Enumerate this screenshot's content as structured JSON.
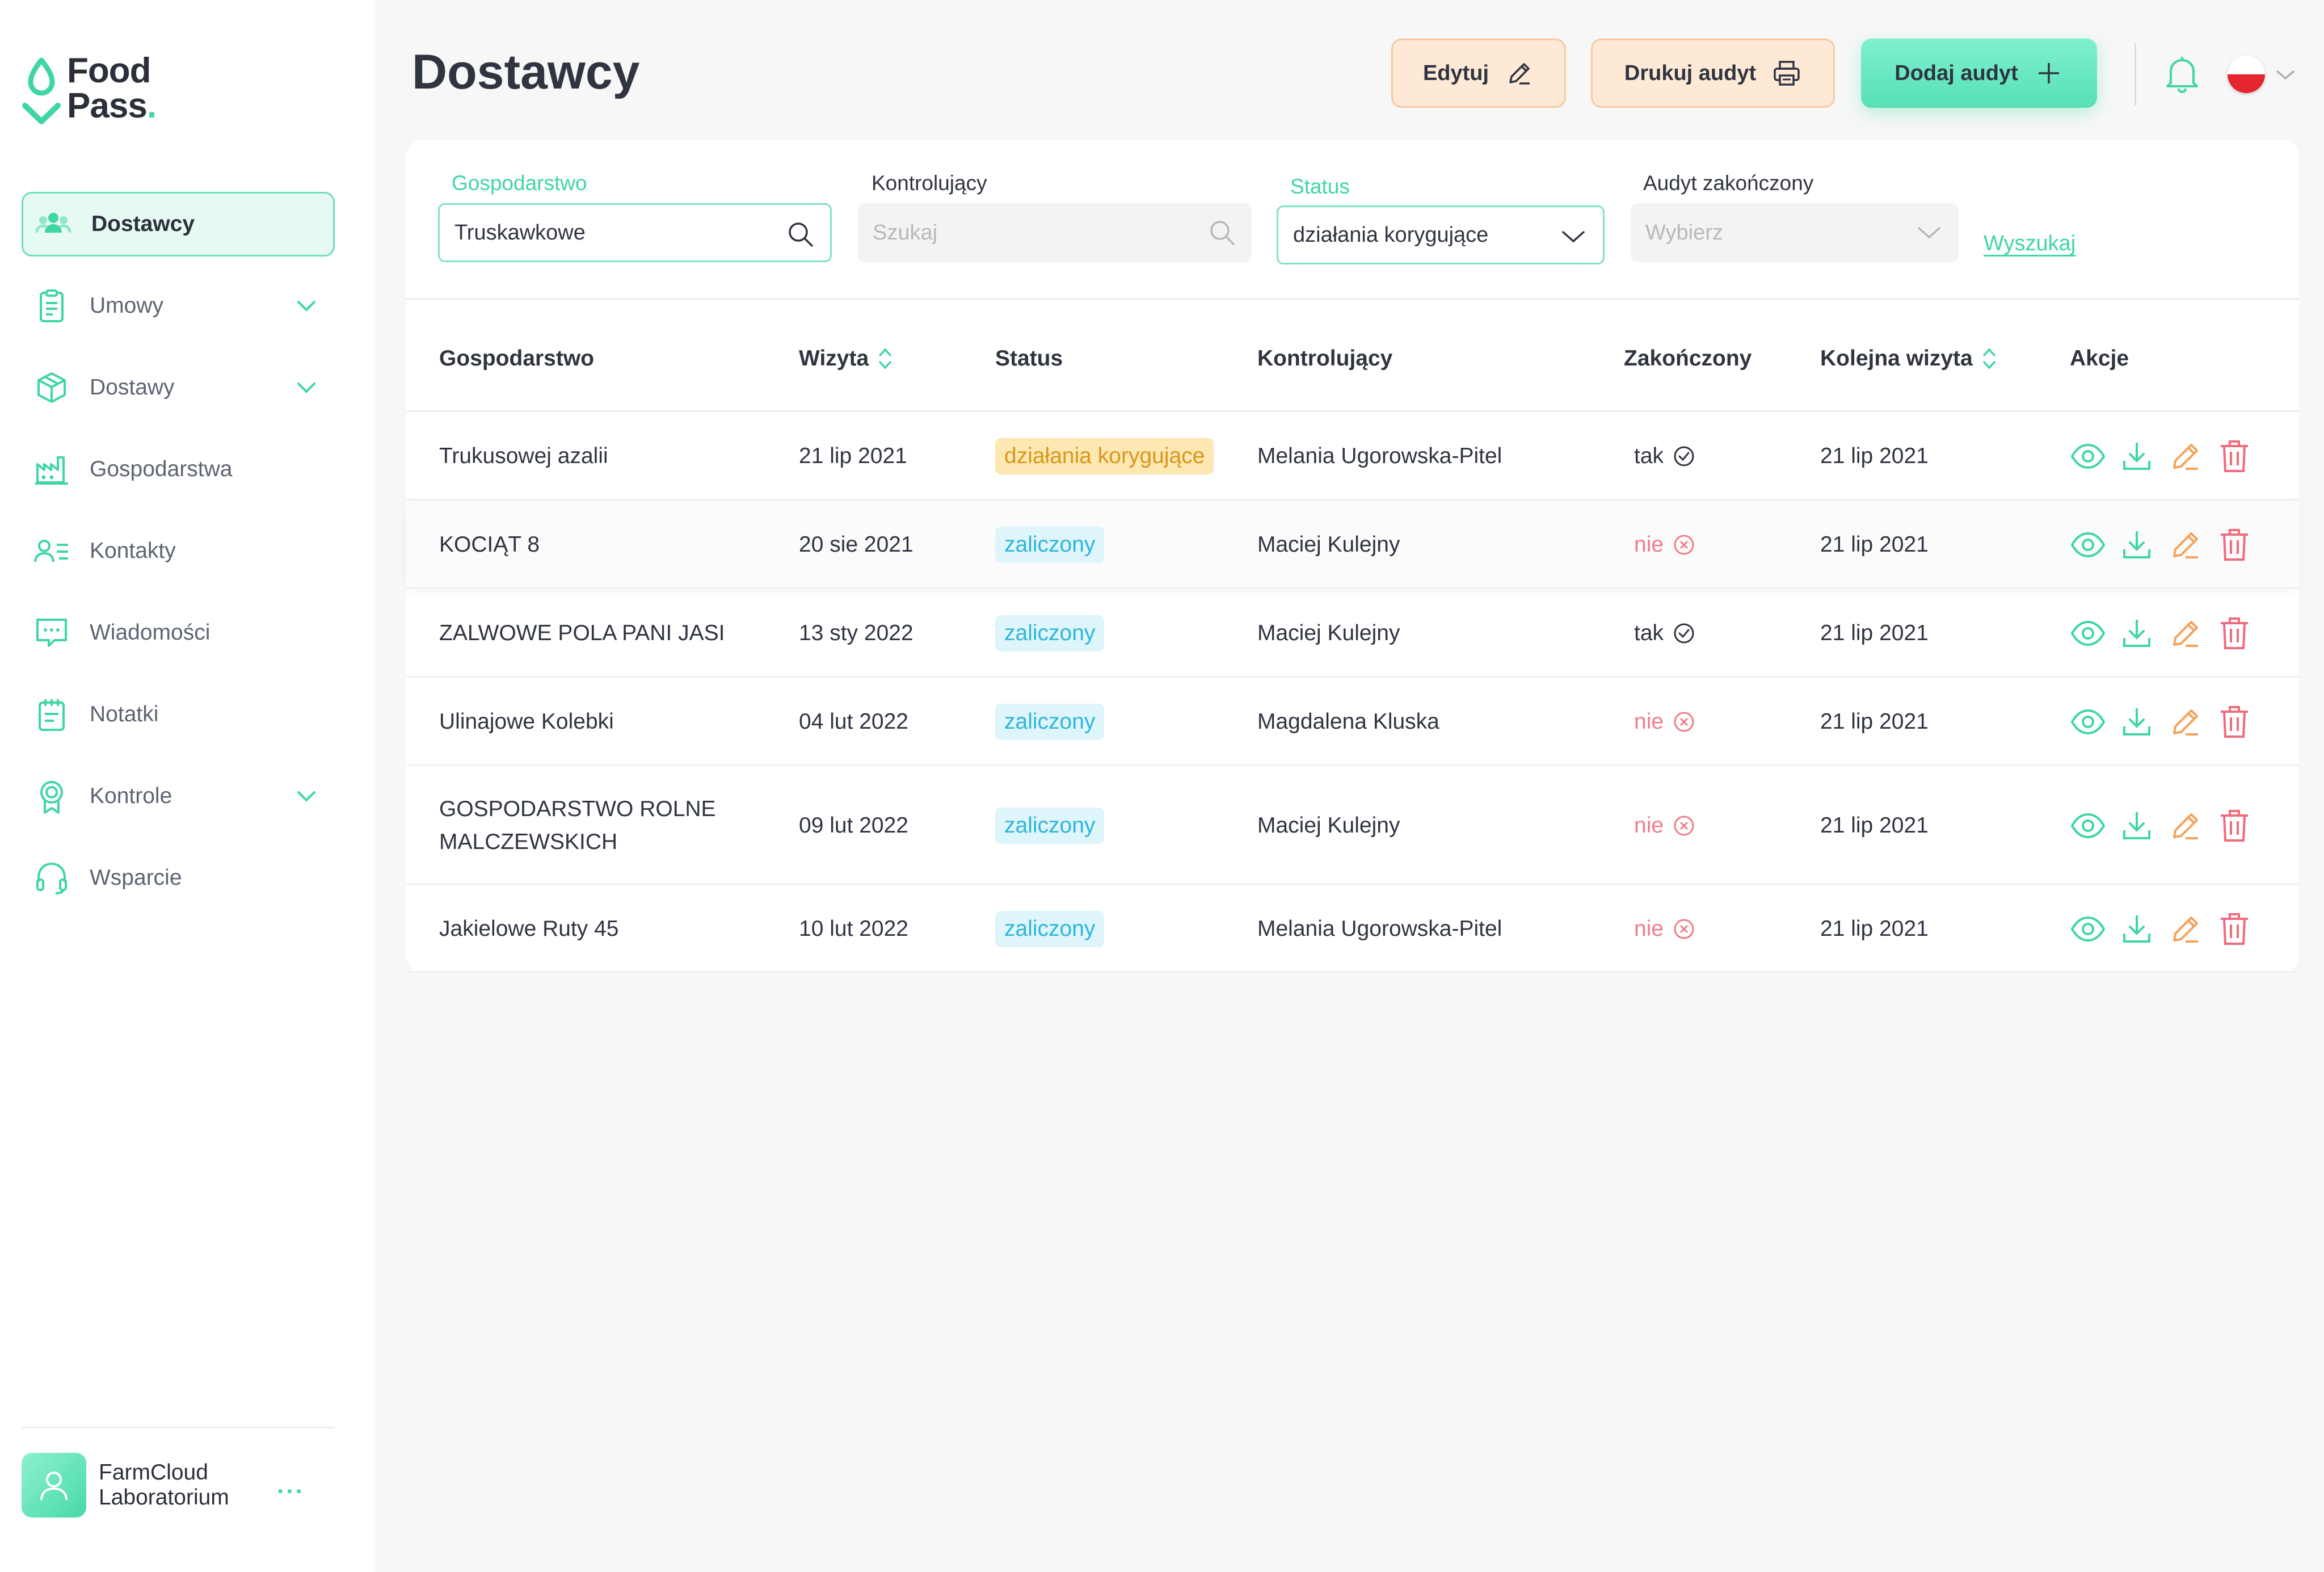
{
  "brand": {
    "line1": "Food",
    "line2": "Pass",
    "dot": "."
  },
  "colors": {
    "accent": "#3fd6a6",
    "warn": "#f5a25a",
    "danger": "#f06b7c",
    "info": "#2fb6d8"
  },
  "sidebar": {
    "items": [
      {
        "label": "Dostawcy",
        "icon": "users-icon",
        "active": true
      },
      {
        "label": "Umowy",
        "icon": "clipboard-icon",
        "expandable": true
      },
      {
        "label": "Dostawy",
        "icon": "package-icon",
        "expandable": true
      },
      {
        "label": "Gospodarstwa",
        "icon": "factory-icon"
      },
      {
        "label": "Kontakty",
        "icon": "contacts-icon"
      },
      {
        "label": "Wiadomości",
        "icon": "message-icon"
      },
      {
        "label": "Notatki",
        "icon": "notes-icon"
      },
      {
        "label": "Kontrole",
        "icon": "badge-icon",
        "expandable": true
      },
      {
        "label": "Wsparcie",
        "icon": "headset-icon"
      }
    ],
    "user": {
      "name": "FarmCloud Laboratorium",
      "menu": "..."
    }
  },
  "header": {
    "title": "Dostawcy",
    "edit_label": "Edytuj",
    "print_label": "Drukuj audyt",
    "add_label": "Dodaj audyt"
  },
  "filters": {
    "farm": {
      "label": "Gospodarstwo",
      "value": "Truskawkowe"
    },
    "inspector": {
      "label": "Kontrolujący",
      "placeholder": "Szukaj"
    },
    "status": {
      "label": "Status",
      "value": "działania korygujące"
    },
    "finished": {
      "label": "Audyt zakończony",
      "placeholder": "Wybierz"
    },
    "search_label": "Wyszukaj"
  },
  "table": {
    "columns": [
      "Gospodarstwo",
      "Wizyta",
      "Status",
      "Kontrolujący",
      "Zakończony",
      "Kolejna wizyta",
      "Akcje"
    ],
    "rows": [
      {
        "farm": "Trukusowej azalii",
        "visit": "21 lip 2021",
        "status": "działania korygujące",
        "status_type": "warn",
        "inspector": "Melania Ugorowska-Pitel",
        "done": "tak",
        "next": "21 lip 2021"
      },
      {
        "farm": "KOCIĄT 8",
        "visit": "20 sie 2021",
        "status": "zaliczony",
        "status_type": "ok",
        "inspector": "Maciej Kulejny",
        "done": "nie",
        "next": "21 lip 2021"
      },
      {
        "farm": "ZALWOWE POLA PANI JASI",
        "visit": "13 sty 2022",
        "status": "zaliczony",
        "status_type": "ok",
        "inspector": "Maciej Kulejny",
        "done": "tak",
        "next": "21 lip 2021"
      },
      {
        "farm": "Ulinajowe Kolebki",
        "visit": "04 lut 2022",
        "status": "zaliczony",
        "status_type": "ok",
        "inspector": "Magdalena Kluska",
        "done": "nie",
        "next": "21 lip 2021"
      },
      {
        "farm": "GOSPODARSTWO ROLNE MALCZEWSKICH",
        "visit": "09 lut 2022",
        "status": "zaliczony",
        "status_type": "ok",
        "inspector": "Maciej Kulejny",
        "done": "nie",
        "next": "21 lip 2021"
      },
      {
        "farm": "Jakielowe Ruty 45",
        "visit": "10 lut 2022",
        "status": "zaliczony",
        "status_type": "ok",
        "inspector": "Melania Ugorowska-Pitel",
        "done": "nie",
        "next": "21 lip 2021"
      }
    ]
  }
}
